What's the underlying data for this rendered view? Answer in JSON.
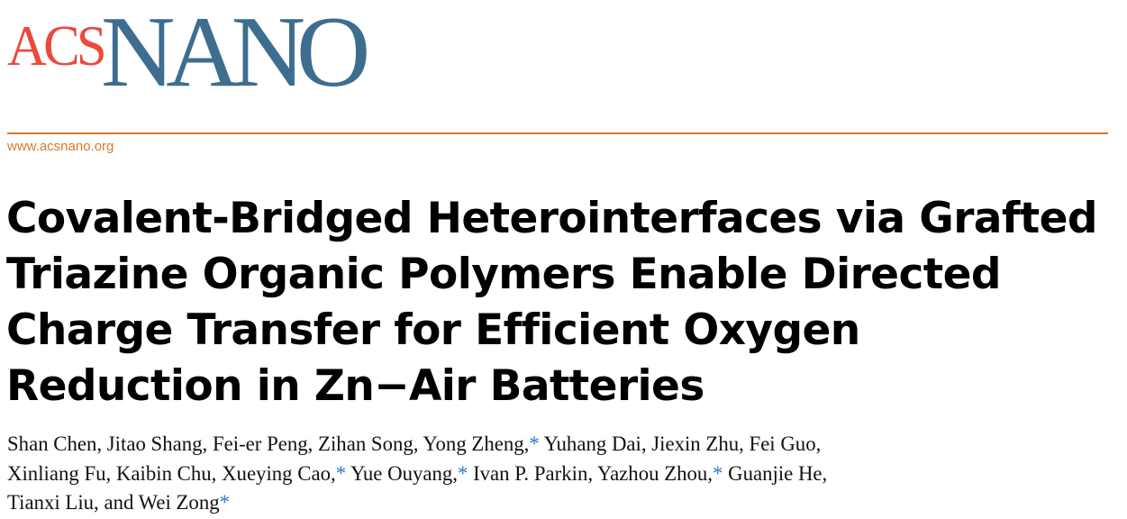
{
  "journal": {
    "logo_acs": "ACS",
    "logo_nano": "NANO",
    "url": "www.acsnano.org",
    "colors": {
      "acs": "#ea4a3c",
      "nano": "#3d6e90",
      "accent": "#d9782d"
    }
  },
  "title": {
    "lines": [
      "Covalent-Bridged Heterointerfaces via Grafted",
      "Triazine Organic Polymers Enable Directed",
      "Charge Transfer for Efficient Oxygen",
      "Reduction in Zn−Air Batteries"
    ]
  },
  "authors": {
    "corresponding_mark": "*",
    "lines": [
      [
        {
          "t": "Shan Chen, Jitao Shang, Fei-er Peng, Zihan Song, Yong Zheng,"
        },
        {
          "s": "*"
        },
        {
          "t": " Yuhang Dai, Jiexin Zhu, Fei Guo,"
        }
      ],
      [
        {
          "t": "Xinliang Fu, Kaibin Chu, Xueying Cao,"
        },
        {
          "s": "*"
        },
        {
          "t": " Yue Ouyang,"
        },
        {
          "s": "*"
        },
        {
          "t": " Ivan P. Parkin, Yazhou Zhou,"
        },
        {
          "s": "*"
        },
        {
          "t": " Guanjie He,"
        }
      ],
      [
        {
          "t": "Tianxi Liu, and Wei Zong"
        },
        {
          "s": "*"
        }
      ]
    ]
  }
}
